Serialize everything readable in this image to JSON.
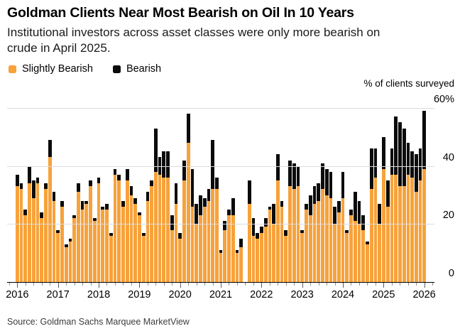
{
  "header": {
    "title": "Goldman Clients Near Most Bearish on Oil In 10 Years",
    "subtitle_line1": "Institutional investors across asset classes were only more bearish on",
    "subtitle_line2": "crude in April 2025."
  },
  "legend": {
    "items": [
      {
        "label": "Slightly Bearish",
        "color": "#F7A23B"
      },
      {
        "label": "Bearish",
        "color": "#0b0b0b"
      }
    ]
  },
  "axis_title": "% of clients surveyed",
  "source": "Source: Goldman Sachs Marquee MarketView",
  "colors": {
    "slightly_bearish": "#F7A23B",
    "bearish": "#0b0b0b",
    "gridline": "#dbdbdb",
    "baseline": "#000000",
    "tick_minor": "#8f8f8f",
    "tick_major": "#5a5a5a"
  },
  "chart_data": {
    "type": "bar",
    "stacked": true,
    "title": "Goldman Clients Near Most Bearish on Oil In 10 Years",
    "ylabel": "% of clients surveyed",
    "ylim": [
      0,
      60
    ],
    "yticks": [
      {
        "value": 0,
        "label": "0"
      },
      {
        "value": 20,
        "label": "20"
      },
      {
        "value": 40,
        "label": "40"
      },
      {
        "value": 60,
        "label": "60%"
      }
    ],
    "grid": "horizontal",
    "legend_position": "top-left",
    "x_range_years": [
      2016,
      2026
    ],
    "x_tick_years": [
      "2016",
      "2017",
      "2018",
      "2019",
      "2020",
      "2021",
      "2022",
      "2023",
      "2024",
      "2025",
      "2026"
    ],
    "bars_per_year": 10,
    "gap_indices": [
      56
    ],
    "series": [
      {
        "name": "Slightly Bearish",
        "values": [
          33,
          32,
          23,
          34,
          29,
          34,
          22,
          32,
          43,
          28,
          17,
          26,
          12,
          14,
          22,
          31,
          25,
          27,
          33,
          21,
          34,
          25,
          25,
          16,
          37,
          35,
          26,
          35,
          30,
          27,
          23,
          16,
          28,
          33,
          38,
          37,
          36,
          36,
          18,
          27,
          15,
          35,
          48,
          26,
          20,
          23,
          26,
          28,
          32,
          32,
          10,
          18,
          23,
          23,
          10,
          12,
          null,
          27,
          16,
          15,
          17,
          19,
          25,
          20,
          35,
          26,
          16,
          33,
          32,
          33,
          17,
          25,
          23,
          27,
          28,
          32,
          30,
          29,
          20,
          24,
          29,
          17,
          23,
          21,
          20,
          18,
          13,
          32,
          36,
          20,
          39,
          26,
          37,
          37,
          33,
          33,
          37,
          36,
          31,
          35,
          39
        ]
      },
      {
        "name": "Bearish",
        "values": [
          4,
          2,
          2,
          6,
          6,
          2,
          2,
          2,
          6,
          3,
          1,
          2,
          1,
          1,
          1,
          3,
          3,
          1,
          2,
          1,
          2,
          1,
          2,
          1,
          2,
          2,
          2,
          4,
          3,
          2,
          1,
          1,
          3,
          2,
          15,
          6,
          9,
          9,
          5,
          7,
          2,
          7,
          10,
          13,
          7,
          7,
          3,
          4,
          17,
          4,
          1,
          3,
          2,
          6,
          1,
          3,
          null,
          8,
          6,
          2,
          2,
          3,
          1,
          7,
          9,
          2,
          2,
          9,
          9,
          7,
          1,
          2,
          7,
          6,
          6,
          9,
          9,
          9,
          6,
          4,
          9,
          1,
          2,
          10,
          8,
          5,
          1,
          14,
          10,
          7,
          11,
          9,
          9,
          20,
          22,
          20,
          11,
          9,
          13,
          11,
          20
        ]
      }
    ]
  }
}
